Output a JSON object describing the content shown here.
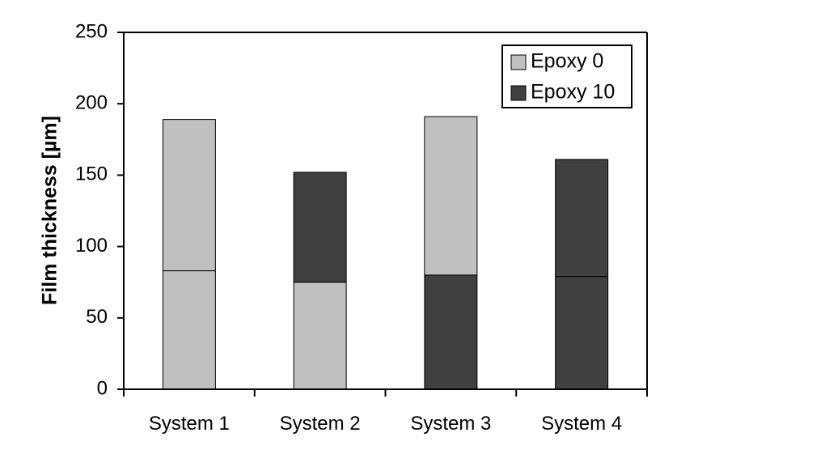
{
  "chart_data": {
    "type": "bar",
    "stacked": true,
    "categories": [
      "System 1",
      "System 2",
      "System 3",
      "System 4"
    ],
    "ylabel": "Film thickness [µm]",
    "xlabel": "",
    "ylim": [
      0,
      250
    ],
    "yticks": [
      0,
      50,
      100,
      150,
      200,
      250
    ],
    "grid": false,
    "legend": {
      "position": "top-right",
      "entries": [
        {
          "label": "Epoxy 0",
          "color": "#c0c0c0"
        },
        {
          "label": "Epoxy 10",
          "color": "#404040"
        }
      ]
    },
    "stacks": [
      {
        "category": "System 1",
        "segments": [
          {
            "layer": "Epoxy 0",
            "value": 83
          },
          {
            "layer": "Epoxy 0",
            "value": 106
          }
        ]
      },
      {
        "category": "System 2",
        "segments": [
          {
            "layer": "Epoxy 0",
            "value": 75
          },
          {
            "layer": "Epoxy 10",
            "value": 77
          }
        ]
      },
      {
        "category": "System 3",
        "segments": [
          {
            "layer": "Epoxy 10",
            "value": 80
          },
          {
            "layer": "Epoxy 0",
            "value": 111
          }
        ]
      },
      {
        "category": "System 4",
        "segments": [
          {
            "layer": "Epoxy 10",
            "value": 79
          },
          {
            "layer": "Epoxy 10",
            "value": 82
          }
        ]
      }
    ]
  }
}
